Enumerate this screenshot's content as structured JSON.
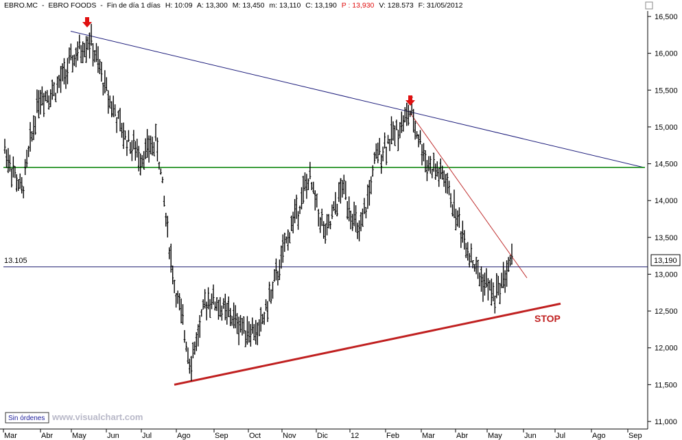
{
  "header": {
    "symbol": "EBRO.MC",
    "name": "EBRO FOODS",
    "period": "Fin de día 1 días",
    "high": "H: 10:09",
    "open": "A: 13,300",
    "max": "M: 13,450",
    "min": "m: 13,110",
    "close": "C: 13,190",
    "prev": "P : 13,930",
    "volume": "V: 128.573",
    "date": "F: 31/05/2012"
  },
  "colors": {
    "downtrend": "#1a1a7a",
    "support": "#008000",
    "trend_down_short": "#c03030",
    "uptrend": "#c02020",
    "arrow": "#e01010",
    "stop_text": "#c02020",
    "price_line": "#1a1a6e",
    "bars": "#000000"
  },
  "annotations": {
    "stop_label": "STOP",
    "arrows": [
      "arrow-down-icon",
      "arrow-down-icon"
    ]
  },
  "footer": {
    "orders_button": "Sin órdenes",
    "watermark": "www.visualchart.com"
  },
  "chart_data": {
    "type": "line",
    "subtype": "ohlc-bar",
    "title": "EBRO.MC - EBRO FOODS",
    "xlabel": "",
    "ylabel": "",
    "x_ticks": [
      "Mar",
      "Abr",
      "May",
      "Jun",
      "Jul",
      "Ago",
      "Sep",
      "Oct",
      "Nov",
      "Dic",
      "12",
      "Feb",
      "Mar",
      "Abr",
      "May",
      "Jun",
      "Jul",
      "Ago",
      "Sep"
    ],
    "y_ticks": [
      "11,000",
      "11,500",
      "12,000",
      "12,500",
      "13,000",
      "13,500",
      "14,000",
      "14,500",
      "15,000",
      "15,500",
      "16,000",
      "16,500"
    ],
    "ylim": [
      11.0,
      16.5
    ],
    "grid": false,
    "left_label": "13.105",
    "right_badge": "13,190",
    "series": [
      {
        "x": [
          "Mar",
          "Mar",
          "Abr",
          "Abr",
          "May",
          "May",
          "Jun",
          "Jun",
          "Jul",
          "Jul",
          "Ago",
          "Ago",
          "Sep",
          "Sep",
          "Oct",
          "Oct",
          "Nov",
          "Nov",
          "Dic",
          "Dic",
          "12",
          "12",
          "Feb",
          "Feb",
          "Mar",
          "Mar",
          "Abr",
          "Abr",
          "May",
          "May",
          "Jun"
        ],
        "values": [
          14.7,
          14.1,
          15.4,
          15.5,
          15.9,
          16.2,
          15.5,
          14.9,
          14.6,
          14.8,
          12.9,
          11.8,
          12.7,
          12.5,
          12.3,
          12.2,
          12.9,
          13.7,
          14.3,
          13.5,
          14.2,
          13.5,
          14.6,
          14.9,
          15.2,
          14.5,
          14.3,
          13.6,
          13.0,
          12.7,
          13.19
        ]
      }
    ],
    "lines": [
      {
        "name": "",
        "from": [
          "May",
          16.3
        ],
        "to": [
          "Sep",
          14.45
        ]
      },
      {
        "name": "",
        "from": [
          "Mar",
          14.45
        ],
        "to": [
          "Sep",
          14.45
        ]
      },
      {
        "name": "",
        "from": [
          "Feb",
          15.2
        ],
        "to": [
          "Jun",
          12.95
        ]
      },
      {
        "name": "",
        "from": [
          "Ago",
          11.5
        ],
        "to": [
          "Jul",
          12.6
        ]
      },
      {
        "name": "",
        "from": [
          "Mar",
          13.1
        ],
        "to": [
          "Sep",
          13.1
        ]
      }
    ]
  }
}
